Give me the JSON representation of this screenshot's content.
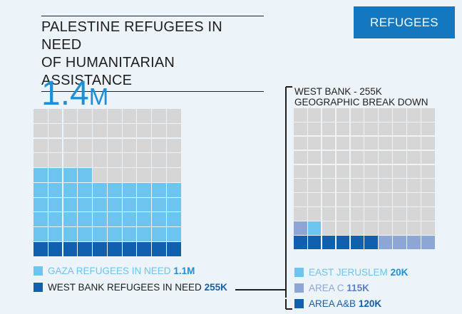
{
  "title_line1": "PALESTINE REFUGEES IN NEED",
  "title_line2": "OF HUMANITARIAN ASSISTANCE",
  "tag": "REFUGEES",
  "total_number": "1.4",
  "total_unit": "M",
  "left_grid": {
    "rows": 10,
    "cols": 10,
    "gaza_squares": 44,
    "westbank_squares": 10,
    "colors": {
      "empty": "#d6d6d6",
      "gaza": "#6cc4ef",
      "westbank": "#1160b0"
    }
  },
  "legend_left": [
    {
      "label": "GAZA REFUGEES IN NEED",
      "value": "1.1M",
      "color": "#6cc4ef"
    },
    {
      "label": "WEST BANK REFUGEES IN NEED",
      "value": "255K",
      "color": "#1160b0"
    }
  ],
  "right_title_line1": "WEST BANK - 255K",
  "right_title_line2": "GEOGRAPHIC BREAK DOWN",
  "right_grid": {
    "rows": 10,
    "cols": 10,
    "colors": {
      "empty": "#d6d6d6",
      "east_jerusalem": "#6cc4ef",
      "area_c": "#8ea6d6",
      "area_ab": "#1160b0"
    }
  },
  "legend_right": [
    {
      "label": "EAST JERUSLEM",
      "value": "20K",
      "color": "#6cc4ef"
    },
    {
      "label": "AREA C",
      "value": "115K",
      "color": "#8ea6d6"
    },
    {
      "label": "AREA A&B",
      "value": "120K",
      "color": "#1160b0"
    }
  ]
}
